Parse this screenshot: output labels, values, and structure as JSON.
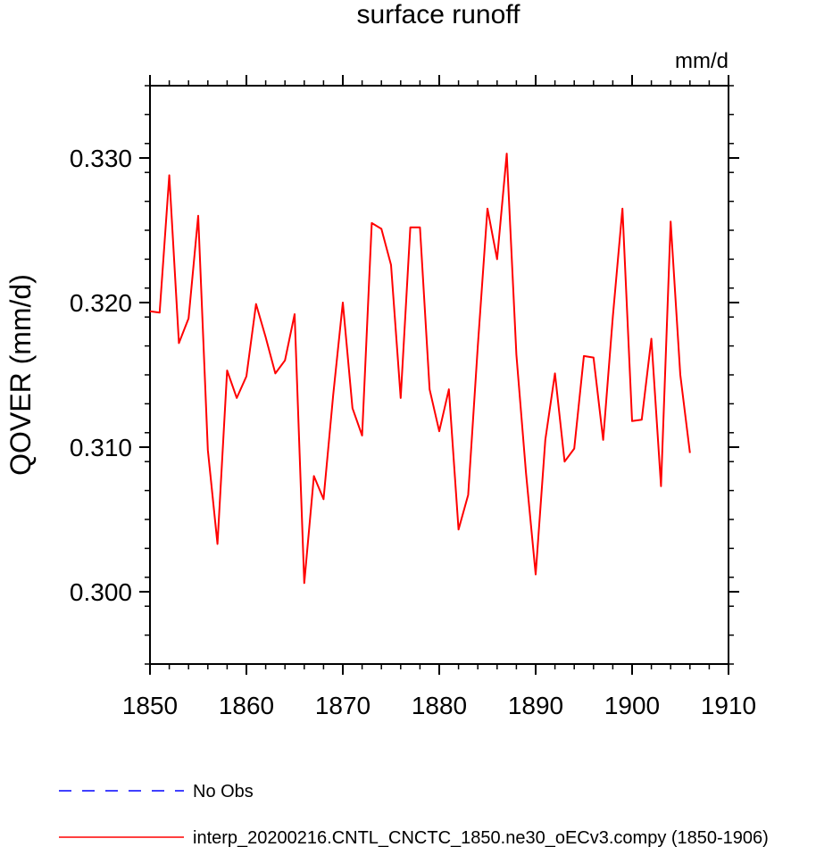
{
  "chart_data": {
    "type": "line",
    "title": "surface runoff",
    "units_label": "mm/d",
    "ylabel": "QOVER  (mm/d)",
    "xlabel": "",
    "xlim": [
      1850,
      1910
    ],
    "ylim": [
      0.295,
      0.335
    ],
    "xticks": [
      1850,
      1860,
      1870,
      1880,
      1890,
      1900,
      1910
    ],
    "xtick_labels": [
      "1850",
      "1860",
      "1870",
      "1880",
      "1890",
      "1900",
      "1910"
    ],
    "yticks": [
      0.3,
      0.31,
      0.32,
      0.33
    ],
    "ytick_labels": [
      "0.300",
      "0.310",
      "0.320",
      "0.330"
    ],
    "grid": false,
    "legend_position": "bottom",
    "legend": [
      {
        "label": "No Obs",
        "color": "#0000ff",
        "dash": true
      },
      {
        "label": "interp_20200216.CNTL_CNCTC_1850.ne30_oECv3.compy (1850-1906)",
        "color": "#ff0000",
        "dash": false
      }
    ],
    "series": [
      {
        "name": "interp_20200216.CNTL_CNCTC_1850.ne30_oECv3.compy (1850-1906)",
        "color": "#ff0000",
        "x": [
          1850,
          1851,
          1852,
          1853,
          1854,
          1855,
          1856,
          1857,
          1858,
          1859,
          1860,
          1861,
          1862,
          1863,
          1864,
          1865,
          1866,
          1867,
          1868,
          1869,
          1870,
          1871,
          1872,
          1873,
          1874,
          1875,
          1876,
          1877,
          1878,
          1879,
          1880,
          1881,
          1882,
          1883,
          1884,
          1885,
          1886,
          1887,
          1888,
          1889,
          1890,
          1891,
          1892,
          1893,
          1894,
          1895,
          1896,
          1897,
          1898,
          1899,
          1900,
          1901,
          1902,
          1903,
          1904,
          1905,
          1906
        ],
        "values": [
          0.3194,
          0.3193,
          0.3288,
          0.3172,
          0.3189,
          0.326,
          0.3098,
          0.3033,
          0.3153,
          0.3134,
          0.3149,
          0.3199,
          0.3176,
          0.3151,
          0.316,
          0.3192,
          0.3006,
          0.308,
          0.3064,
          0.3136,
          0.32,
          0.3127,
          0.3108,
          0.3255,
          0.3251,
          0.3226,
          0.3134,
          0.3252,
          0.3252,
          0.314,
          0.3111,
          0.314,
          0.3043,
          0.3067,
          0.317,
          0.3265,
          0.323,
          0.3303,
          0.3164,
          0.3082,
          0.3012,
          0.3105,
          0.3151,
          0.309,
          0.3099,
          0.3163,
          0.3162,
          0.3105,
          0.319,
          0.3265,
          0.3118,
          0.3119,
          0.3175,
          0.3073,
          0.3256,
          0.315,
          0.3096
        ]
      }
    ]
  }
}
